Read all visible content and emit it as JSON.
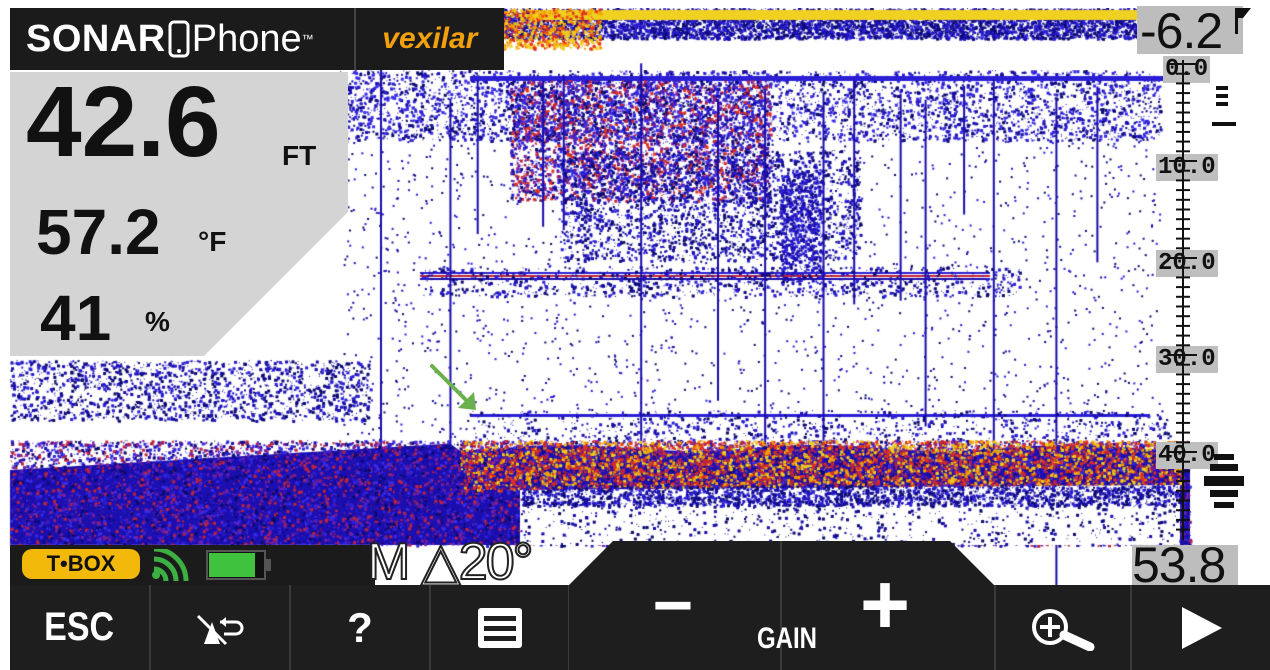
{
  "brand": {
    "app_name_bold": "SONAR",
    "app_name_light": "Phone",
    "trademark": "™",
    "partner": "vexilar"
  },
  "readout": {
    "depth_value": "42.6",
    "depth_unit": "FT",
    "temp_value": "57.2",
    "temp_unit": "°F",
    "battery_value": "41",
    "battery_unit": "%"
  },
  "scale": {
    "top_value": "-6.2",
    "labels": [
      "0.0",
      "10.0",
      "20.0",
      "30.0",
      "40.0"
    ],
    "bottom_value": "53.8"
  },
  "status": {
    "tbox_label": "T•BOX",
    "battery_level": 0.85,
    "mode": "M",
    "cone_angle": "△20°"
  },
  "toolbar": {
    "esc_label": "ESC",
    "help_label": "?",
    "gain_minus": "−",
    "gain_label": "GAIN",
    "gain_plus": "+"
  },
  "colors": {
    "panel": "#1b1b1b",
    "readout_bg": "#d4d4d4",
    "accent": "#f3b90a",
    "brand_orange": "#f2a10c",
    "arrow": "#6ab04c"
  },
  "icons": [
    "wifi-signal-icon",
    "battery-icon",
    "navigate-back-icon",
    "menu-icon",
    "zoom-in-icon",
    "play-icon"
  ]
}
